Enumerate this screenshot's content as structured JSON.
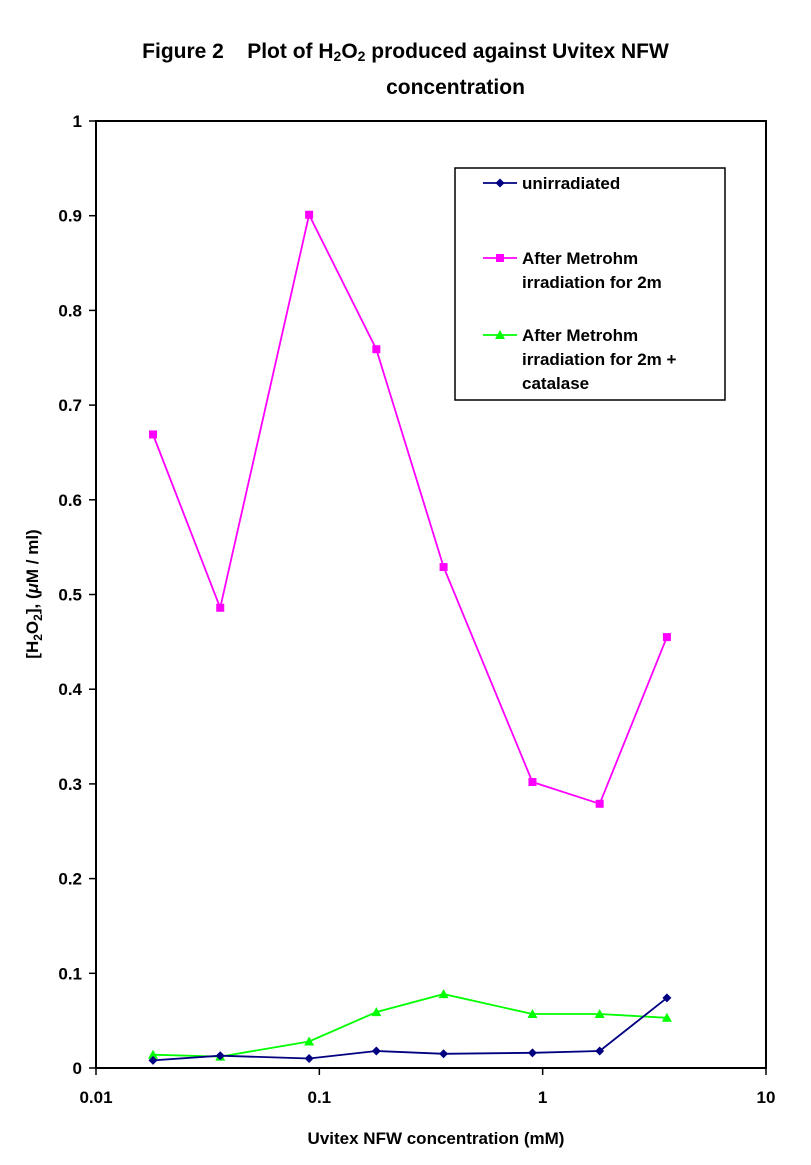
{
  "title": {
    "prefix": "Figure 2    Plot of H",
    "sub1": "2",
    "mid": "O",
    "sub2": "2",
    "suffix": " produced against Uvitex NFW",
    "line2": "concentration"
  },
  "chart_data": {
    "type": "line",
    "x_scale": "log",
    "xlim": [
      0.01,
      10
    ],
    "ylim": [
      0,
      1
    ],
    "x_ticks": [
      0.01,
      0.1,
      1,
      10
    ],
    "x_tick_labels": [
      "0.01",
      "0.1",
      "1",
      "10"
    ],
    "y_ticks": [
      0,
      0.1,
      0.2,
      0.3,
      0.4,
      0.5,
      0.6,
      0.7,
      0.8,
      0.9,
      1
    ],
    "y_tick_labels": [
      "0",
      "0.1",
      "0.2",
      "0.3",
      "0.4",
      "0.5",
      "0.6",
      "0.7",
      "0.8",
      "0.9",
      "1"
    ],
    "xlabel": "Uvitex NFW concentration (mM)",
    "ylabel": {
      "pre": "[H",
      "sub1": "2",
      "mid": "O",
      "sub2": "2",
      "post": "], (",
      "mu": "μ",
      "tail": "M / ml)"
    },
    "grid": false,
    "legend_position": "top-right",
    "x": [
      0.018,
      0.036,
      0.09,
      0.18,
      0.36,
      0.9,
      1.8,
      3.6
    ],
    "series": [
      {
        "name": "unirradiated",
        "color": "#000080",
        "marker": "diamond",
        "values": [
          0.008,
          0.013,
          0.01,
          0.018,
          0.015,
          0.016,
          0.018,
          0.074
        ]
      },
      {
        "name": "After Metrohm irradiation for 2m",
        "legend_lines": [
          "After Metrohm",
          "irradiation for 2m"
        ],
        "color": "#FF00FF",
        "marker": "square",
        "values": [
          0.669,
          0.486,
          0.901,
          0.759,
          0.529,
          0.302,
          0.279,
          0.455
        ]
      },
      {
        "name": "After Metrohm irradiation for 2m + catalase",
        "legend_lines": [
          "After Metrohm",
          "irradiation for 2m +",
          "catalase"
        ],
        "color": "#00FF00",
        "marker": "triangle",
        "values": [
          0.014,
          0.012,
          0.028,
          0.059,
          0.078,
          0.057,
          0.057,
          0.053
        ]
      }
    ]
  }
}
